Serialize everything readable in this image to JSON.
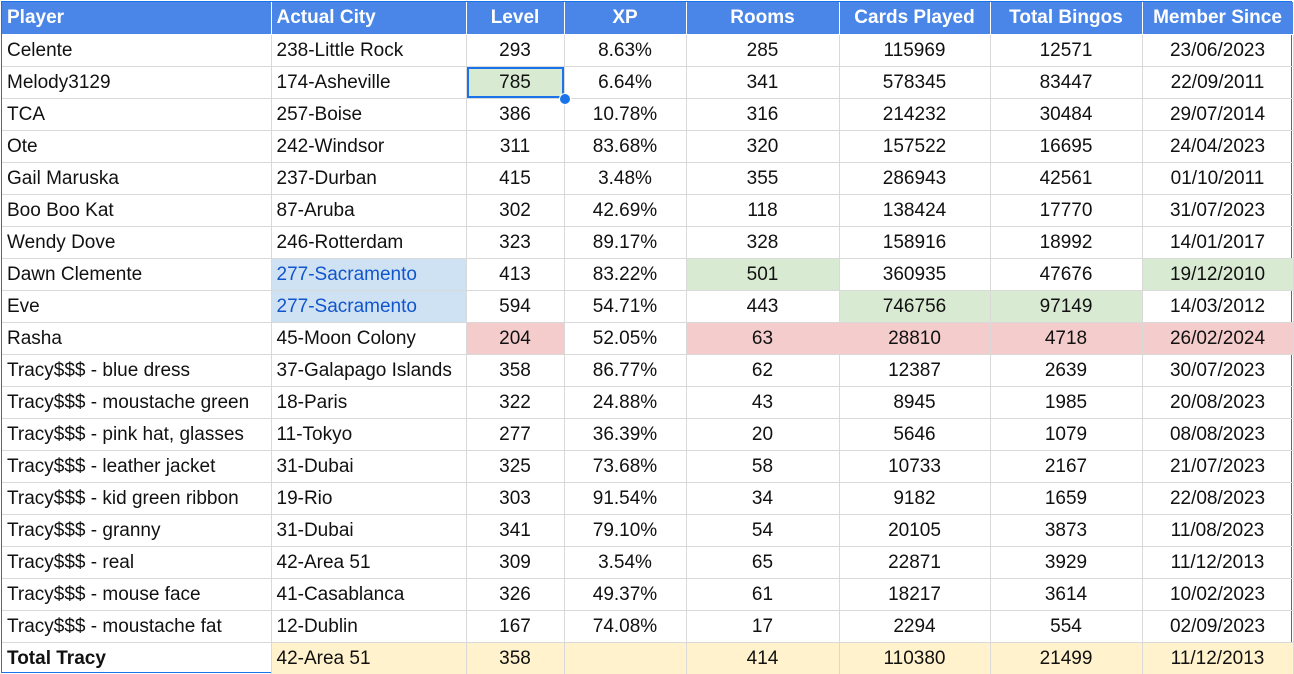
{
  "headers": [
    "Player",
    "Actual City",
    "Level",
    "XP",
    "Rooms",
    "Cards Played",
    "Total Bingos",
    "Member Since"
  ],
  "rows": [
    {
      "player": "Celente",
      "city": "238-Little Rock",
      "level": "293",
      "xp": "8.63%",
      "rooms": "285",
      "cards": "115969",
      "bingos": "12571",
      "since": "23/06/2023"
    },
    {
      "player": "Melody3129",
      "city": "174-Asheville",
      "level": "785",
      "xp": "6.64%",
      "rooms": "341",
      "cards": "578345",
      "bingos": "83447",
      "since": "22/09/2011"
    },
    {
      "player": "TCA",
      "city": "257-Boise",
      "level": "386",
      "xp": "10.78%",
      "rooms": "316",
      "cards": "214232",
      "bingos": "30484",
      "since": "29/07/2014"
    },
    {
      "player": "Ote",
      "city": "242-Windsor",
      "level": "311",
      "xp": "83.68%",
      "rooms": "320",
      "cards": "157522",
      "bingos": "16695",
      "since": "24/04/2023"
    },
    {
      "player": "Gail Maruska",
      "city": "237-Durban",
      "level": "415",
      "xp": "3.48%",
      "rooms": "355",
      "cards": "286943",
      "bingos": "42561",
      "since": "01/10/2011"
    },
    {
      "player": "Boo Boo Kat",
      "city": "87-Aruba",
      "level": "302",
      "xp": "42.69%",
      "rooms": "118",
      "cards": "138424",
      "bingos": "17770",
      "since": "31/07/2023"
    },
    {
      "player": "Wendy Dove",
      "city": "246-Rotterdam",
      "level": "323",
      "xp": "89.17%",
      "rooms": "328",
      "cards": "158916",
      "bingos": "18992",
      "since": "14/01/2017"
    },
    {
      "player": "Dawn Clemente",
      "city": "277-Sacramento",
      "level": "413",
      "xp": "83.22%",
      "rooms": "501",
      "cards": "360935",
      "bingos": "47676",
      "since": "19/12/2010"
    },
    {
      "player": "Eve",
      "city": "277-Sacramento",
      "level": "594",
      "xp": "54.71%",
      "rooms": "443",
      "cards": "746756",
      "bingos": "97149",
      "since": "14/03/2012"
    },
    {
      "player": "Rasha",
      "city": "45-Moon Colony",
      "level": "204",
      "xp": "52.05%",
      "rooms": "63",
      "cards": "28810",
      "bingos": "4718",
      "since": "26/02/2024"
    },
    {
      "player": "Tracy$$$ - blue dress",
      "city": "37-Galapago Islands",
      "level": "358",
      "xp": "86.77%",
      "rooms": "62",
      "cards": "12387",
      "bingos": "2639",
      "since": "30/07/2023"
    },
    {
      "player": "Tracy$$$ - moustache green",
      "city": "18-Paris",
      "level": "322",
      "xp": "24.88%",
      "rooms": "43",
      "cards": "8945",
      "bingos": "1985",
      "since": "20/08/2023"
    },
    {
      "player": "Tracy$$$ - pink hat, glasses",
      "city": "11-Tokyo",
      "level": "277",
      "xp": "36.39%",
      "rooms": "20",
      "cards": "5646",
      "bingos": "1079",
      "since": "08/08/2023"
    },
    {
      "player": "Tracy$$$ - leather jacket",
      "city": "31-Dubai",
      "level": "325",
      "xp": "73.68%",
      "rooms": "58",
      "cards": "10733",
      "bingos": "2167",
      "since": "21/07/2023"
    },
    {
      "player": "Tracy$$$ - kid green ribbon",
      "city": "19-Rio",
      "level": "303",
      "xp": "91.54%",
      "rooms": "34",
      "cards": "9182",
      "bingos": "1659",
      "since": "22/08/2023"
    },
    {
      "player": "Tracy$$$ - granny",
      "city": "31-Dubai",
      "level": "341",
      "xp": "79.10%",
      "rooms": "54",
      "cards": "20105",
      "bingos": "3873",
      "since": "11/08/2023"
    },
    {
      "player": "Tracy$$$ - real",
      "city": "42-Area 51",
      "level": "309",
      "xp": "3.54%",
      "rooms": "65",
      "cards": "22871",
      "bingos": "3929",
      "since": "11/12/2013"
    },
    {
      "player": "Tracy$$$ - mouse face",
      "city": "41-Casablanca",
      "level": "326",
      "xp": "49.37%",
      "rooms": "61",
      "cards": "18217",
      "bingos": "3614",
      "since": "10/02/2023"
    },
    {
      "player": "Tracy$$$ - moustache fat",
      "city": "12-Dublin",
      "level": "167",
      "xp": "74.08%",
      "rooms": "17",
      "cards": "2294",
      "bingos": "554",
      "since": "02/09/2023"
    }
  ],
  "total": {
    "player": "Total Tracy",
    "city": "42-Area 51",
    "level": "358",
    "xp": "",
    "rooms": "414",
    "cards": "110380",
    "bingos": "21499",
    "since": "11/12/2013"
  },
  "colors": {
    "header": "#4a86e8",
    "highlight_green": "#d9ead3",
    "highlight_blue": "#cfe2f3",
    "highlight_red": "#f4cccc",
    "total_yellow": "#fff2cc",
    "selection": "#1a73e8",
    "link": "#1155cc"
  },
  "selected_cell": {
    "row": 1,
    "column": "Level"
  }
}
